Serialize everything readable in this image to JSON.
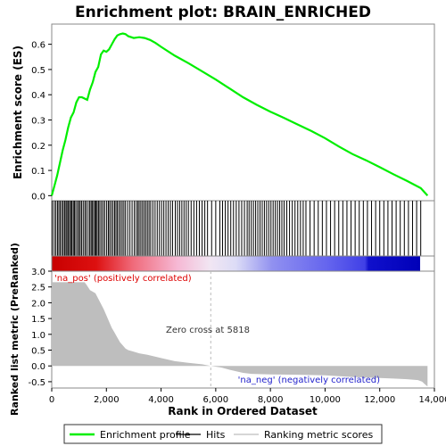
{
  "title": "Enrichment plot: BRAIN_ENRICHED",
  "colors": {
    "enrichment_line": "#00ee00",
    "hits": "#000000",
    "metric_fill": "#bebebe",
    "pos_label": "#dd0000",
    "neg_label": "#2222cc",
    "zero_line": "#bbbbbb"
  },
  "legend": {
    "items": [
      {
        "label": "Enrichment profile",
        "color": "#00ee00",
        "icon": "line-swatch"
      },
      {
        "label": "Hits",
        "color": "#000000",
        "icon": "line-swatch"
      },
      {
        "label": "Ranking metric scores",
        "color": "#bebebe",
        "icon": "line-swatch"
      }
    ]
  },
  "chart_data": [
    {
      "type": "line",
      "panel": "enrichment",
      "ylabel": "Enrichment score (ES)",
      "ylim": [
        -0.02,
        0.68
      ],
      "yticks": [
        "0.0",
        "0.1",
        "0.2",
        "0.3",
        "0.4",
        "0.5",
        "0.6"
      ],
      "xlim": [
        0,
        14000
      ],
      "grid": false,
      "series": [
        {
          "x": [
            0,
            100,
            200,
            300,
            400,
            500,
            600,
            700,
            800,
            900,
            1000,
            1100,
            1300,
            1400,
            1500,
            1600,
            1700,
            1800,
            1900,
            2000,
            2100,
            2200,
            2300,
            2400,
            2500,
            2600,
            2700,
            2800,
            3000,
            3200,
            3400,
            3600,
            3800,
            4000,
            4500,
            5000,
            5500,
            6000,
            6500,
            7000,
            7500,
            8000,
            8500,
            9000,
            9500,
            10000,
            10500,
            11000,
            11500,
            12000,
            12500,
            13000,
            13500,
            13750
          ],
          "values": [
            0.0,
            0.04,
            0.08,
            0.13,
            0.18,
            0.22,
            0.27,
            0.31,
            0.33,
            0.37,
            0.39,
            0.39,
            0.38,
            0.42,
            0.45,
            0.49,
            0.51,
            0.56,
            0.575,
            0.57,
            0.58,
            0.6,
            0.62,
            0.635,
            0.64,
            0.643,
            0.64,
            0.632,
            0.625,
            0.628,
            0.625,
            0.617,
            0.605,
            0.59,
            0.555,
            0.525,
            0.493,
            0.46,
            0.425,
            0.39,
            0.36,
            0.333,
            0.308,
            0.282,
            0.256,
            0.228,
            0.195,
            0.165,
            0.14,
            0.113,
            0.085,
            0.058,
            0.03,
            0.0
          ]
        }
      ]
    },
    {
      "type": "bar",
      "panel": "hits",
      "x_rank": [
        20,
        90,
        150,
        210,
        260,
        310,
        370,
        420,
        470,
        520,
        560,
        610,
        650,
        700,
        740,
        790,
        830,
        880,
        940,
        990,
        1040,
        1090,
        1150,
        1210,
        1260,
        1330,
        1390,
        1440,
        1480,
        1530,
        1580,
        1620,
        1660,
        1710,
        1760,
        1820,
        1880,
        1940,
        2010,
        2070,
        2120,
        2180,
        2240,
        2300,
        2350,
        2400,
        2460,
        2520,
        2580,
        2640,
        2700,
        2780,
        2860,
        2940,
        3020,
        3090,
        3150,
        3200,
        3260,
        3320,
        3380,
        3440,
        3500,
        3560,
        3620,
        3700,
        3780,
        3860,
        3940,
        4020,
        4100,
        4180,
        4260,
        4340,
        4420,
        4520,
        4600,
        4680,
        4760,
        4840,
        4920,
        5000,
        5100,
        5200,
        5300,
        5400,
        5500,
        5600,
        5700,
        5850,
        6000,
        6150,
        6250,
        6350,
        6450,
        6550,
        6650,
        6750,
        6850,
        6950,
        7050,
        7150,
        7220,
        7300,
        7380,
        7460,
        7540,
        7620,
        7700,
        7780,
        7860,
        7940,
        8020,
        8100,
        8180,
        8260,
        8340,
        8420,
        8500,
        8600,
        8700,
        8800,
        8900,
        9000,
        9100,
        9200,
        9300,
        9450,
        9600,
        9750,
        9900,
        10050,
        10200,
        10350,
        10500,
        10650,
        10800,
        10950,
        11100,
        11250,
        11400,
        11550,
        11700,
        11850,
        12000,
        12150,
        12300,
        12450,
        12600,
        12750,
        12900,
        13050,
        13200,
        13350,
        13500
      ]
    },
    {
      "type": "area",
      "panel": "ranked_metric",
      "xlabel": "Rank in Ordered Dataset",
      "ylabel": "Ranked list metric (PreRanked)",
      "xlim": [
        0,
        14000
      ],
      "xticks": [
        "0",
        "2,000",
        "4,000",
        "6,000",
        "8,000",
        "10,000",
        "12,000",
        "14,000"
      ],
      "ylim": [
        -0.7,
        3.0
      ],
      "yticks": [
        "-0.5",
        "0.0",
        "0.5",
        "1.0",
        "1.5",
        "2.0",
        "2.5",
        "3.0"
      ],
      "grid": false,
      "series": [
        {
          "x": [
            0,
            1200,
            1250,
            1400,
            1600,
            1750,
            1900,
            2000,
            2100,
            2200,
            2300,
            2400,
            2500,
            2600,
            2700,
            2800,
            3000,
            3200,
            3500,
            4000,
            4500,
            5000,
            5500,
            5818,
            6200,
            6500,
            6800,
            7000,
            7300,
            8000,
            9000,
            10000,
            11000,
            12000,
            12500,
            13000,
            13400,
            13550,
            13650,
            13750
          ],
          "values": [
            2.65,
            2.65,
            2.6,
            2.4,
            2.3,
            2.05,
            1.8,
            1.6,
            1.4,
            1.2,
            1.05,
            0.9,
            0.75,
            0.65,
            0.55,
            0.5,
            0.45,
            0.4,
            0.35,
            0.25,
            0.15,
            0.1,
            0.05,
            0.0,
            -0.05,
            -0.12,
            -0.18,
            -0.22,
            -0.25,
            -0.27,
            -0.28,
            -0.3,
            -0.35,
            -0.38,
            -0.4,
            -0.42,
            -0.45,
            -0.5,
            -0.58,
            -0.65
          ]
        }
      ],
      "zero_cross": 5818,
      "annotations": [
        "Zero cross at 5818",
        "'na_pos' (positively correlated)",
        "'na_neg' (negatively correlated)"
      ]
    }
  ]
}
